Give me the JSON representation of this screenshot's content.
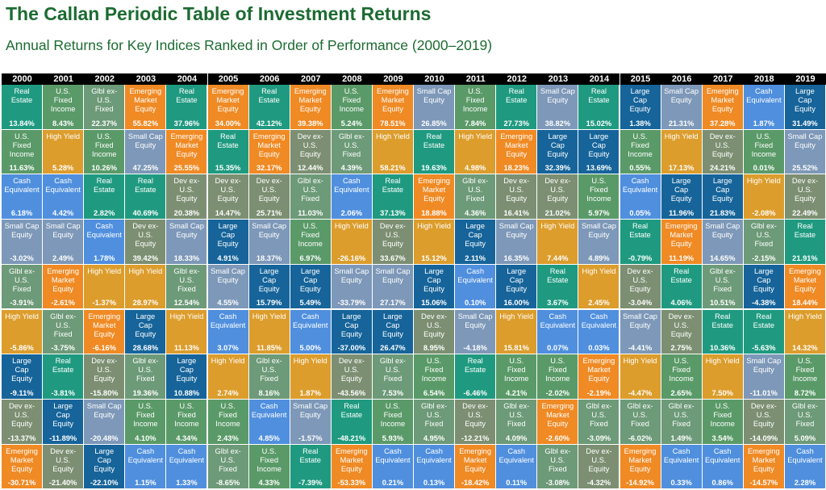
{
  "title": "The Callan Periodic Table of Investment Returns",
  "subtitle": "Annual Returns for Key Indices Ranked in Order of Performance (2000–2019)",
  "colors": {
    "Real Estate": "#1f9a80",
    "U.S. Fixed Income": "#5a9a68",
    "Glbl ex-U.S. Fixed": "#6d9a78",
    "Emerging Market Equity": "#f08a24",
    "Small Cap Equity": "#7d98b8",
    "Large Cap Equity": "#16649a",
    "High Yield": "#dc9d2c",
    "Cash Equivalent": "#4f8fde",
    "Dev ex-U.S. Equity": "#7c8f72"
  },
  "chart_data": {
    "type": "table",
    "years": [
      "2000",
      "2001",
      "2002",
      "2003",
      "2004",
      "2005",
      "2006",
      "2007",
      "2008",
      "2009",
      "2010",
      "2011",
      "2012",
      "2013",
      "2014",
      "2015",
      "2016",
      "2017",
      "2018",
      "2019"
    ],
    "columns": [
      [
        [
          "Real Estate",
          "13.84%"
        ],
        [
          "U.S. Fixed Income",
          "11.63%"
        ],
        [
          "Cash Equivalent",
          "6.18%"
        ],
        [
          "Small Cap Equity",
          "-3.02%"
        ],
        [
          "Glbl ex-U.S. Fixed",
          "-3.91%"
        ],
        [
          "High Yield",
          "-5.86%"
        ],
        [
          "Large Cap Equity",
          "-9.11%"
        ],
        [
          "Dev ex-U.S. Equity",
          "-13.37%"
        ],
        [
          "Emerging Market Equity",
          "-30.71%"
        ]
      ],
      [
        [
          "U.S. Fixed Income",
          "8.43%"
        ],
        [
          "High Yield",
          "5.28%"
        ],
        [
          "Cash Equivalent",
          "4.42%"
        ],
        [
          "Small Cap Equity",
          "2.49%"
        ],
        [
          "Emerging Market Equity",
          "-2.61%"
        ],
        [
          "Glbl ex-U.S. Fixed",
          "-3.75%"
        ],
        [
          "Real Estate",
          "-3.81%"
        ],
        [
          "Large Cap Equity",
          "-11.89%"
        ],
        [
          "Dev ex-U.S. Equity",
          "-21.40%"
        ]
      ],
      [
        [
          "Glbl ex-U.S. Fixed",
          "22.37%"
        ],
        [
          "U.S. Fixed Income",
          "10.26%"
        ],
        [
          "Real Estate",
          "2.82%"
        ],
        [
          "Cash Equivalent",
          "1.78%"
        ],
        [
          "High Yield",
          "-1.37%"
        ],
        [
          "Emerging Market Equity",
          "-6.16%"
        ],
        [
          "Dev ex-U.S. Equity",
          "-15.80%"
        ],
        [
          "Small Cap Equity",
          "-20.48%"
        ],
        [
          "Large Cap Equity",
          "-22.10%"
        ]
      ],
      [
        [
          "Emerging Market Equity",
          "55.82%"
        ],
        [
          "Small Cap Equity",
          "47.25%"
        ],
        [
          "Real Estate",
          "40.69%"
        ],
        [
          "Dev ex-U.S. Equity",
          "39.42%"
        ],
        [
          "High Yield",
          "28.97%"
        ],
        [
          "Large Cap Equity",
          "28.68%"
        ],
        [
          "Glbl ex-U.S. Fixed",
          "19.36%"
        ],
        [
          "U.S. Fixed Income",
          "4.10%"
        ],
        [
          "Cash Equivalent",
          "1.15%"
        ]
      ],
      [
        [
          "Real Estate",
          "37.96%"
        ],
        [
          "Emerging Market Equity",
          "25.55%"
        ],
        [
          "Dev ex-U.S. Equity",
          "20.38%"
        ],
        [
          "Small Cap Equity",
          "18.33%"
        ],
        [
          "Glbl ex-U.S. Fixed",
          "12.54%"
        ],
        [
          "High Yield",
          "11.13%"
        ],
        [
          "Large Cap Equity",
          "10.88%"
        ],
        [
          "U.S. Fixed Income",
          "4.34%"
        ],
        [
          "Cash Equivalent",
          "1.33%"
        ]
      ],
      [
        [
          "Emerging Market Equity",
          "34.00%"
        ],
        [
          "Real Estate",
          "15.35%"
        ],
        [
          "Dev ex-U.S. Equity",
          "14.47%"
        ],
        [
          "Large Cap Equity",
          "4.91%"
        ],
        [
          "Small Cap Equity",
          "4.55%"
        ],
        [
          "Cash Equivalent",
          "3.07%"
        ],
        [
          "High Yield",
          "2.74%"
        ],
        [
          "U.S. Fixed Income",
          "2.43%"
        ],
        [
          "Glbl ex-U.S. Fixed",
          "-8.65%"
        ]
      ],
      [
        [
          "Real Estate",
          "42.12%"
        ],
        [
          "Emerging Market Equity",
          "32.17%"
        ],
        [
          "Dev ex-U.S. Equity",
          "25.71%"
        ],
        [
          "Small Cap Equity",
          "18.37%"
        ],
        [
          "Large Cap Equity",
          "15.79%"
        ],
        [
          "High Yield",
          "11.85%"
        ],
        [
          "Glbl ex-U.S. Fixed",
          "8.16%"
        ],
        [
          "Cash Equivalent",
          "4.85%"
        ],
        [
          "U.S. Fixed Income",
          "4.33%"
        ]
      ],
      [
        [
          "Emerging Market Equity",
          "39.38%"
        ],
        [
          "Dev ex-U.S. Equity",
          "12.44%"
        ],
        [
          "Glbl ex-U.S. Fixed",
          "11.03%"
        ],
        [
          "U.S. Fixed Income",
          "6.97%"
        ],
        [
          "Large Cap Equity",
          "5.49%"
        ],
        [
          "Cash Equivalent",
          "5.00%"
        ],
        [
          "High Yield",
          "1.87%"
        ],
        [
          "Small Cap Equity",
          "-1.57%"
        ],
        [
          "Real Estate",
          "-7.39%"
        ]
      ],
      [
        [
          "U.S. Fixed Income",
          "5.24%"
        ],
        [
          "Glbl ex-U.S. Fixed",
          "4.39%"
        ],
        [
          "Cash Equivalent",
          "2.06%"
        ],
        [
          "High Yield",
          "-26.16%"
        ],
        [
          "Small Cap Equity",
          "-33.79%"
        ],
        [
          "Large Cap Equity",
          "-37.00%"
        ],
        [
          "Dev ex-U.S. Equity",
          "-43.56%"
        ],
        [
          "Real Estate",
          "-48.21%"
        ],
        [
          "Emerging Market Equity",
          "-53.33%"
        ]
      ],
      [
        [
          "Emerging Market Equity",
          "78.51%"
        ],
        [
          "High Yield",
          "58.21%"
        ],
        [
          "Real Estate",
          "37.13%"
        ],
        [
          "Dev ex-U.S. Equity",
          "33.67%"
        ],
        [
          "Small Cap Equity",
          "27.17%"
        ],
        [
          "Large Cap Equity",
          "26.47%"
        ],
        [
          "Glbl ex-U.S. Fixed",
          "7.53%"
        ],
        [
          "U.S. Fixed Income",
          "5.93%"
        ],
        [
          "Cash Equivalent",
          "0.21%"
        ]
      ],
      [
        [
          "Small Cap Equity",
          "26.85%"
        ],
        [
          "Real Estate",
          "19.63%"
        ],
        [
          "Emerging Market Equity",
          "18.88%"
        ],
        [
          "High Yield",
          "15.12%"
        ],
        [
          "Large Cap Equity",
          "15.06%"
        ],
        [
          "Dev ex-U.S. Equity",
          "8.95%"
        ],
        [
          "U.S. Fixed Income",
          "6.54%"
        ],
        [
          "Glbl ex-U.S. Fixed",
          "4.95%"
        ],
        [
          "Cash Equivalent",
          "0.13%"
        ]
      ],
      [
        [
          "U.S. Fixed Income",
          "7.84%"
        ],
        [
          "High Yield",
          "4.98%"
        ],
        [
          "Glbl ex-U.S. Fixed",
          "4.36%"
        ],
        [
          "Large Cap Equity",
          "2.11%"
        ],
        [
          "Cash Equivalent",
          "0.10%"
        ],
        [
          "Small Cap Equity",
          "-4.18%"
        ],
        [
          "Real Estate",
          "-6.46%"
        ],
        [
          "Dev ex-U.S. Equity",
          "-12.21%"
        ],
        [
          "Emerging Market Equity",
          "-18.42%"
        ]
      ],
      [
        [
          "Real Estate",
          "27.73%"
        ],
        [
          "Emerging Market Equity",
          "18.23%"
        ],
        [
          "Dev ex-U.S. Equity",
          "16.41%"
        ],
        [
          "Small Cap Equity",
          "16.35%"
        ],
        [
          "Large Cap Equity",
          "16.00%"
        ],
        [
          "High Yield",
          "15.81%"
        ],
        [
          "U.S. Fixed Income",
          "4.21%"
        ],
        [
          "Glbl ex-U.S. Fixed",
          "4.09%"
        ],
        [
          "Cash Equivalent",
          "0.11%"
        ]
      ],
      [
        [
          "Small Cap Equity",
          "38.82%"
        ],
        [
          "Large Cap Equity",
          "32.39%"
        ],
        [
          "Dev ex-U.S. Equity",
          "21.02%"
        ],
        [
          "High Yield",
          "7.44%"
        ],
        [
          "Real Estate",
          "3.67%"
        ],
        [
          "Cash Equivalent",
          "0.07%"
        ],
        [
          "U.S. Fixed Income",
          "-2.02%"
        ],
        [
          "Emerging Market Equity",
          "-2.60%"
        ],
        [
          "Glbl ex-U.S. Fixed",
          "-3.08%"
        ]
      ],
      [
        [
          "Real Estate",
          "15.02%"
        ],
        [
          "Large Cap Equity",
          "13.69%"
        ],
        [
          "U.S. Fixed Income",
          "5.97%"
        ],
        [
          "Small Cap Equity",
          "4.89%"
        ],
        [
          "High Yield",
          "2.45%"
        ],
        [
          "Cash Equivalent",
          "0.03%"
        ],
        [
          "Emerging Market Equity",
          "-2.19%"
        ],
        [
          "Glbl ex-U.S. Fixed",
          "-3.09%"
        ],
        [
          "Dev ex-U.S. Equity",
          "-4.32%"
        ]
      ],
      [
        [
          "Large Cap Equity",
          "1.38%"
        ],
        [
          "U.S. Fixed Income",
          "0.55%"
        ],
        [
          "Cash Equivalent",
          "0.05%"
        ],
        [
          "Real Estate",
          "-0.79%"
        ],
        [
          "Dev ex-U.S. Equity",
          "-3.04%"
        ],
        [
          "Small Cap Equity",
          "-4.41%"
        ],
        [
          "High Yield",
          "-4.47%"
        ],
        [
          "Glbl ex-U.S. Fixed",
          "-6.02%"
        ],
        [
          "Emerging Market Equity",
          "-14.92%"
        ]
      ],
      [
        [
          "Small Cap Equity",
          "21.31%"
        ],
        [
          "High Yield",
          "17.13%"
        ],
        [
          "Large Cap Equity",
          "11.96%"
        ],
        [
          "Emerging Market Equity",
          "11.19%"
        ],
        [
          "Real Estate",
          "4.06%"
        ],
        [
          "Dev ex-U.S. Equity",
          "2.75%"
        ],
        [
          "U.S. Fixed Income",
          "2.65%"
        ],
        [
          "Glbl ex-U.S. Fixed",
          "1.49%"
        ],
        [
          "Cash Equivalent",
          "0.33%"
        ]
      ],
      [
        [
          "Emerging Market Equity",
          "37.28%"
        ],
        [
          "Dev ex-U.S. Equity",
          "24.21%"
        ],
        [
          "Large Cap Equity",
          "21.83%"
        ],
        [
          "Small Cap Equity",
          "14.65%"
        ],
        [
          "Glbl ex-U.S. Fixed",
          "10.51%"
        ],
        [
          "Real Estate",
          "10.36%"
        ],
        [
          "High Yield",
          "7.50%"
        ],
        [
          "U.S. Fixed Income",
          "3.54%"
        ],
        [
          "Cash Equivalent",
          "0.86%"
        ]
      ],
      [
        [
          "Cash Equivalent",
          "1.87%"
        ],
        [
          "U.S. Fixed Income",
          "0.01%"
        ],
        [
          "High Yield",
          "-2.08%"
        ],
        [
          "Glbl ex-U.S. Fixed",
          "-2.15%"
        ],
        [
          "Large Cap Equity",
          "-4.38%"
        ],
        [
          "Real Estate",
          "-5.63%"
        ],
        [
          "Small Cap Equity",
          "-11.01%"
        ],
        [
          "Dev ex-U.S. Equity",
          "-14.09%"
        ],
        [
          "Emerging Market Equity",
          "-14.57%"
        ]
      ],
      [
        [
          "Large Cap Equity",
          "31.49%"
        ],
        [
          "Small Cap Equity",
          "25.52%"
        ],
        [
          "Dev ex-U.S. Equity",
          "22.49%"
        ],
        [
          "Real Estate",
          "21.91%"
        ],
        [
          "Emerging Market Equity",
          "18.44%"
        ],
        [
          "High Yield",
          "14.32%"
        ],
        [
          "U.S. Fixed Income",
          "8.72%"
        ],
        [
          "Glbl ex-U.S. Fixed",
          "5.09%"
        ],
        [
          "Cash Equivalent",
          "2.28%"
        ]
      ]
    ]
  }
}
